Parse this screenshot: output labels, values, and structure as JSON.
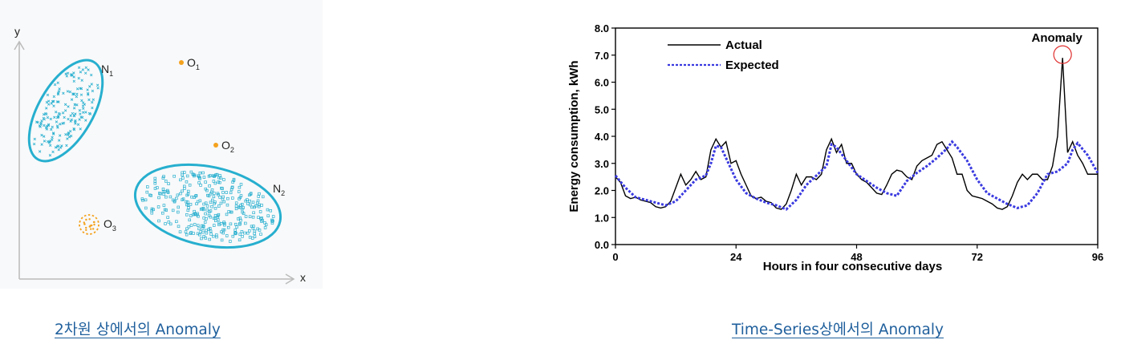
{
  "captions": {
    "left": "2차원 상에서의 Anomaly",
    "right": "Time-Series상에서의 Anomaly"
  },
  "colors": {
    "cluster": "#27afcf",
    "outlier": "#f4a21e",
    "actual": "#000000",
    "expected": "#3a3ae0",
    "anomaly_circle": "#e03030"
  },
  "chart_data": [
    {
      "type": "scatter",
      "xlabel": "x",
      "ylabel": "y",
      "clusters": [
        {
          "label": "N",
          "subscript": "1",
          "marker": "x"
        },
        {
          "label": "N",
          "subscript": "2",
          "marker": "square"
        }
      ],
      "outliers": [
        {
          "label": "O",
          "subscript": "1"
        },
        {
          "label": "O",
          "subscript": "2"
        },
        {
          "label": "O",
          "subscript": "3"
        }
      ]
    },
    {
      "type": "line",
      "xlabel": "Hours in four consecutive days",
      "ylabel": "Energy consumption, kWh",
      "xlim": [
        0,
        96
      ],
      "ylim": [
        0,
        8
      ],
      "xticks": [
        0,
        24,
        48,
        72,
        96
      ],
      "yticks": [
        "0.0",
        "1.0",
        "2.0",
        "3.0",
        "4.0",
        "5.0",
        "6.0",
        "7.0",
        "8.0"
      ],
      "grid": false,
      "legend": "top-left",
      "annotation": {
        "text": "Anomaly",
        "x": 89,
        "y": 6.9
      },
      "series": [
        {
          "name": "Actual",
          "style": "solid",
          "x": [
            0,
            1,
            2,
            3,
            4,
            5,
            6,
            7,
            8,
            9,
            10,
            11,
            12,
            13,
            14,
            15,
            16,
            17,
            18,
            19,
            20,
            21,
            22,
            23,
            24,
            25,
            26,
            27,
            28,
            29,
            30,
            31,
            32,
            33,
            34,
            35,
            36,
            37,
            38,
            39,
            40,
            41,
            42,
            43,
            44,
            45,
            46,
            47,
            48,
            49,
            50,
            51,
            52,
            53,
            54,
            55,
            56,
            57,
            58,
            59,
            60,
            61,
            62,
            63,
            64,
            65,
            66,
            67,
            68,
            69,
            70,
            71,
            72,
            73,
            74,
            75,
            76,
            77,
            78,
            79,
            80,
            81,
            82,
            83,
            84,
            85,
            86,
            87,
            88,
            89,
            90,
            91,
            92,
            93,
            94,
            95,
            96
          ],
          "y": [
            2.5,
            2.3,
            1.8,
            1.7,
            1.75,
            1.65,
            1.6,
            1.55,
            1.4,
            1.35,
            1.4,
            1.6,
            2.1,
            2.6,
            2.2,
            2.4,
            2.7,
            2.4,
            2.5,
            3.5,
            3.9,
            3.6,
            3.8,
            3.0,
            3.1,
            2.6,
            2.2,
            1.8,
            1.7,
            1.75,
            1.6,
            1.55,
            1.35,
            1.3,
            1.5,
            2.0,
            2.6,
            2.2,
            2.5,
            2.5,
            2.4,
            2.6,
            3.5,
            3.9,
            3.4,
            3.7,
            3.0,
            3.0,
            2.6,
            2.4,
            2.3,
            2.1,
            1.9,
            1.85,
            2.2,
            2.6,
            2.75,
            2.7,
            2.5,
            2.4,
            2.9,
            3.1,
            3.2,
            3.3,
            3.7,
            3.8,
            3.5,
            3.2,
            2.6,
            2.6,
            2.0,
            1.8,
            1.75,
            1.7,
            1.6,
            1.5,
            1.35,
            1.3,
            1.4,
            1.8,
            2.3,
            2.6,
            2.4,
            2.6,
            2.6,
            2.4,
            2.4,
            2.9,
            4.0,
            6.9,
            3.4,
            3.8,
            3.3,
            3.0,
            2.6,
            2.6,
            2.6
          ]
        },
        {
          "name": "Expected",
          "style": "dashed",
          "x": [
            0,
            2,
            4,
            6,
            8,
            10,
            12,
            14,
            16,
            18,
            19,
            20,
            21,
            22,
            24,
            26,
            28,
            30,
            32,
            34,
            36,
            38,
            40,
            42,
            43,
            44,
            46,
            48,
            50,
            52,
            54,
            56,
            58,
            60,
            62,
            64,
            66,
            67,
            68,
            70,
            72,
            74,
            76,
            78,
            80,
            82,
            84,
            86,
            88,
            90,
            91,
            92,
            94,
            96
          ],
          "y": [
            2.55,
            2.1,
            1.75,
            1.65,
            1.55,
            1.45,
            1.6,
            2.0,
            2.4,
            2.55,
            3.0,
            3.65,
            3.6,
            3.2,
            2.4,
            1.9,
            1.7,
            1.55,
            1.45,
            1.3,
            1.65,
            2.2,
            2.55,
            2.9,
            3.7,
            3.6,
            3.1,
            2.6,
            2.35,
            2.1,
            1.9,
            1.8,
            2.35,
            2.65,
            2.9,
            3.2,
            3.55,
            3.8,
            3.6,
            3.1,
            2.4,
            1.9,
            1.7,
            1.5,
            1.35,
            1.45,
            1.9,
            2.6,
            2.7,
            3.0,
            3.5,
            3.75,
            3.3,
            2.65
          ]
        }
      ]
    }
  ]
}
